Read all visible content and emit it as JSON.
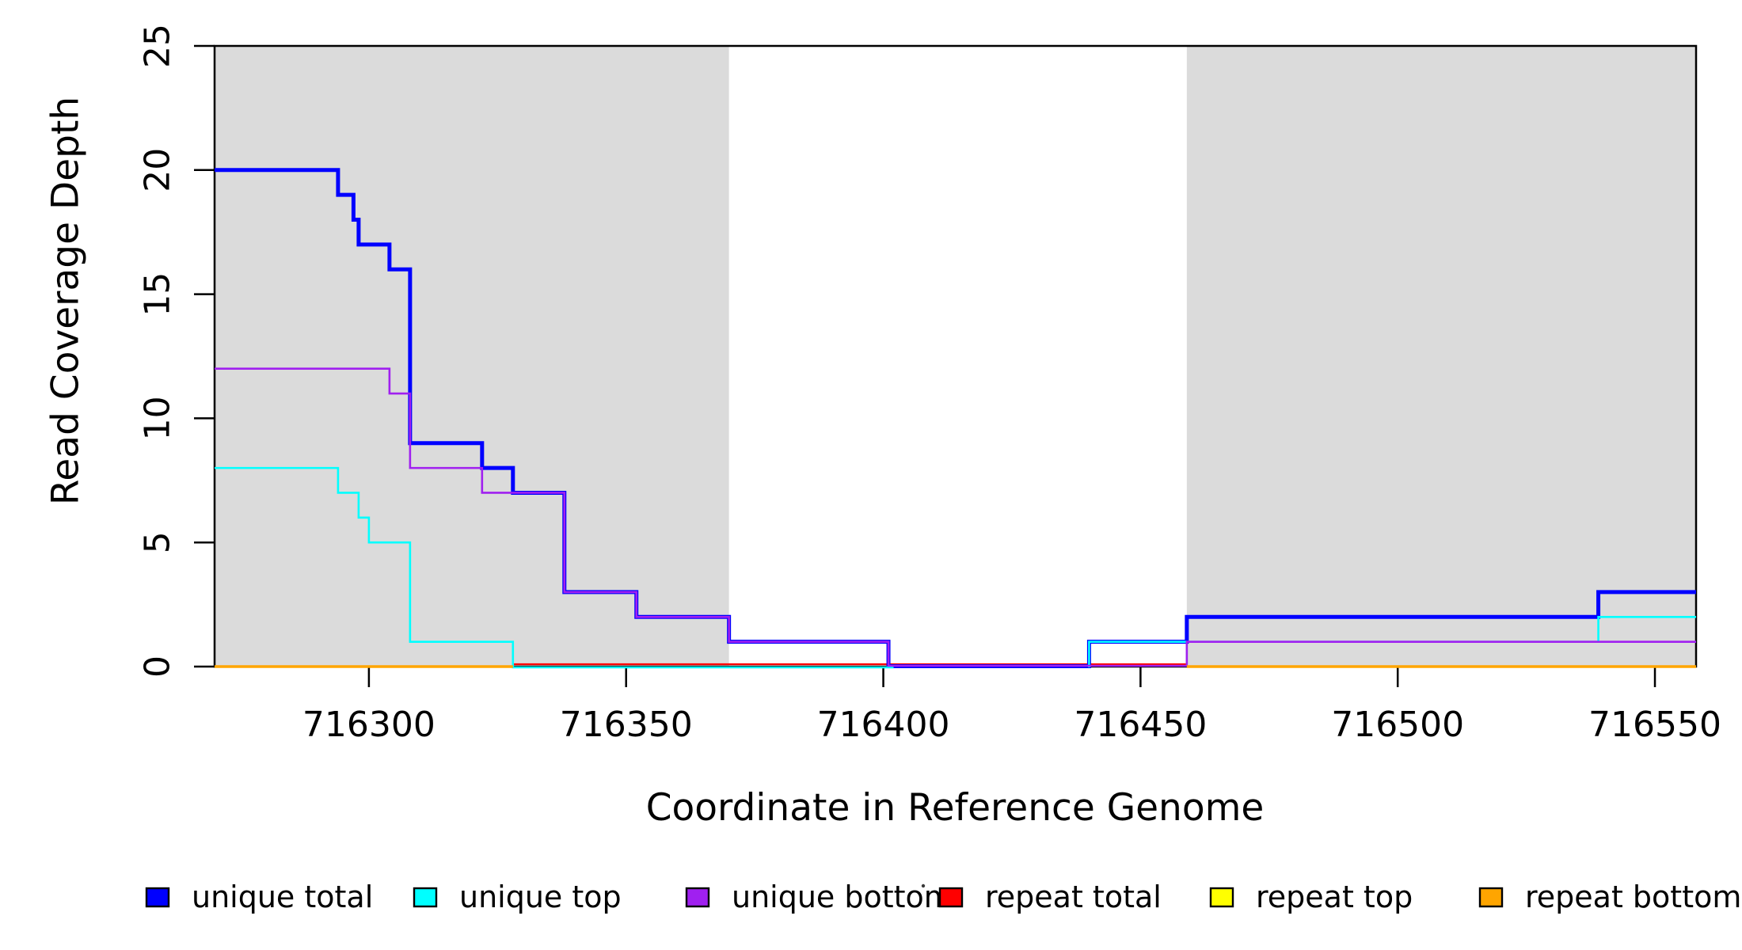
{
  "chart_data": {
    "type": "line",
    "subtype": "step-coverage-plot",
    "title": "",
    "xlabel": "Coordinate in Reference Genome",
    "ylabel": "Read Coverage Depth",
    "xlim": [
      716270,
      716558
    ],
    "ylim": [
      0,
      25
    ],
    "x_ticks": [
      716300,
      716350,
      716400,
      716450,
      716500,
      716550
    ],
    "y_ticks": [
      0,
      5,
      10,
      15,
      20,
      25
    ],
    "grid": "off",
    "legend_position": "bottom",
    "shade_color": "#dbdbdb",
    "axis_color": "#000000",
    "shaded_regions": [
      {
        "name": "repeat-region-left",
        "x0": 716270,
        "x1": 716370
      },
      {
        "name": "repeat-region-right",
        "x0": 716459,
        "x1": 716558
      }
    ],
    "draw_order": [
      "repeat_total",
      "unique_total",
      "unique_top",
      "unique_bottom",
      "repeat_top",
      "repeat_bottom"
    ],
    "series": [
      {
        "id": "unique_total",
        "label": "unique total",
        "color": "#0000FF",
        "lw": 5,
        "zero_offset": -0.5,
        "runs": [
          {
            "points": [
              [
                716270,
                20
              ],
              [
                716294,
                19
              ],
              [
                716297,
                18
              ],
              [
                716298,
                17
              ],
              [
                716304,
                16
              ],
              [
                716308,
                9
              ],
              [
                716322,
                8
              ],
              [
                716328,
                7
              ],
              [
                716338,
                3
              ],
              [
                716352,
                2
              ],
              [
                716370,
                1
              ],
              [
                716401,
                0
              ],
              [
                716440,
                1
              ],
              [
                716459,
                2
              ],
              [
                716539,
                3
              ]
            ],
            "end": 716558
          }
        ]
      },
      {
        "id": "unique_top",
        "label": "unique top",
        "color": "#00FFFF",
        "lw": 2.6,
        "zero_offset": 1,
        "runs": [
          {
            "points": [
              [
                716270,
                8
              ],
              [
                716294,
                7
              ],
              [
                716298,
                6
              ],
              [
                716300,
                5
              ],
              [
                716308,
                1
              ],
              [
                716328,
                0
              ]
            ],
            "end": 716402
          },
          {
            "points": [
              [
                716440,
                0
              ],
              [
                716440,
                1
              ],
              [
                716539,
                2
              ]
            ],
            "end": 716558
          }
        ]
      },
      {
        "id": "unique_bottom",
        "label": "unique bottom",
        "color": "#A020F0",
        "lw": 2.6,
        "zero_offset": -1,
        "runs": [
          {
            "points": [
              [
                716270,
                12
              ],
              [
                716304,
                11
              ],
              [
                716308,
                8
              ],
              [
                716322,
                7
              ],
              [
                716338,
                3
              ],
              [
                716352,
                2
              ],
              [
                716370,
                1
              ],
              [
                716401,
                0
              ],
              [
                716459,
                1
              ]
            ],
            "end": 716558
          }
        ]
      },
      {
        "id": "repeat_total",
        "label": "repeat total",
        "color": "#FF0000",
        "lw": 2.2,
        "zero_offset": -3,
        "runs": [
          {
            "points": [
              [
                716328,
                0
              ]
            ],
            "end": 716459
          }
        ]
      },
      {
        "id": "repeat_top",
        "label": "repeat top",
        "color": "#FFFF00",
        "lw": 2.6,
        "zero_offset": 0,
        "runs": []
      },
      {
        "id": "repeat_bottom",
        "label": "repeat bottom",
        "color": "#FFA500",
        "lw": 3.5,
        "zero_offset": 0,
        "runs": [
          {
            "points": [
              [
                716270,
                0
              ]
            ],
            "end": 716328
          },
          {
            "points": [
              [
                716459,
                0
              ]
            ],
            "end": 716558
          }
        ]
      }
    ],
    "legend": [
      {
        "label": "unique total",
        "color": "#0000FF"
      },
      {
        "label": "unique top",
        "color": "#00FFFF"
      },
      {
        "label": "unique bottom",
        "color": "#A020F0"
      },
      {
        "label": "repeat total",
        "color": "#FF0000"
      },
      {
        "label": "repeat top",
        "color": "#FFFF00"
      },
      {
        "label": "repeat bottom",
        "color": "#FFA500"
      }
    ]
  }
}
